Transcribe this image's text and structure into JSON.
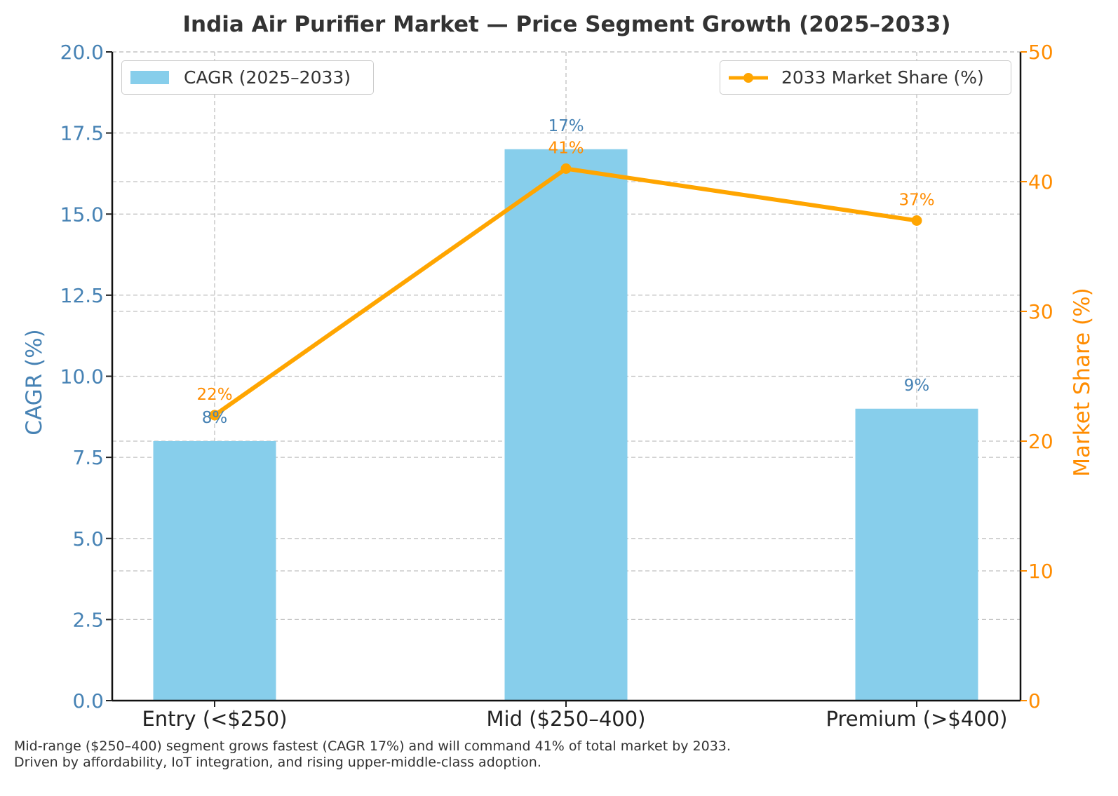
{
  "chart_data": {
    "type": "bar+line",
    "title": "India Air Purifier Market — Price Segment Growth (2025–2033)",
    "categories": [
      "Entry (<$250)",
      "Mid ($250–400)",
      "Premium (>$400)"
    ],
    "series": [
      {
        "name": "CAGR (2025–2033)",
        "type": "bar",
        "axis": "left",
        "values": [
          8,
          17,
          9
        ],
        "labels": [
          "8%",
          "17%",
          "9%"
        ],
        "color": "#87ceeb",
        "label_color": "#4682b4"
      },
      {
        "name": "2033 Market Share (%)",
        "type": "line",
        "axis": "right",
        "values": [
          22,
          41,
          37
        ],
        "labels": [
          "22%",
          "41%",
          "37%"
        ],
        "color": "#ffa500",
        "label_color": "#ff8c00"
      }
    ],
    "ylabel_left": "CAGR (%)",
    "ylabel_right": "Market Share (%)",
    "ylim_left": [
      0,
      20
    ],
    "ylim_right": [
      0,
      50
    ],
    "yticks_left": [
      "0.0",
      "2.5",
      "5.0",
      "7.5",
      "10.0",
      "12.5",
      "15.0",
      "17.5",
      "20.0"
    ],
    "yticks_right": [
      "0",
      "10",
      "20",
      "30",
      "40",
      "50"
    ],
    "grid": true,
    "legend_left_position": "top-left",
    "legend_right_position": "top-right",
    "left_axis_color": "#4682b4",
    "right_axis_color": "#ff8c00"
  },
  "footnote": {
    "line1": "Mid-range ($250–400) segment grows fastest (CAGR 17%) and will command 41% of total market by 2033.",
    "line2": "Driven by affordability, IoT integration, and rising upper-middle-class adoption."
  }
}
